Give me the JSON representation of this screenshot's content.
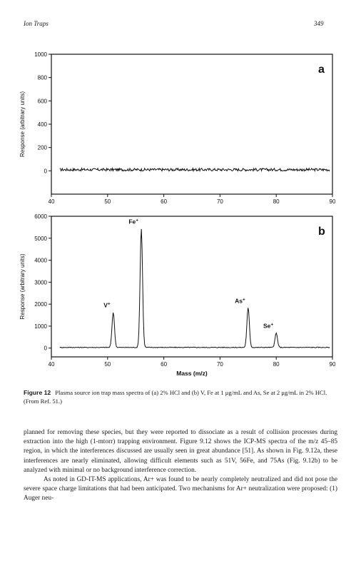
{
  "header": {
    "running_title": "Ion Traps",
    "page_number": "349"
  },
  "chart_data": [
    {
      "type": "line",
      "panel_label": "a",
      "ylabel": "Response (arbitrary units)",
      "xlabel": "",
      "xlim": [
        40,
        90
      ],
      "ylim": [
        -200,
        1000
      ],
      "x_ticks": [
        "40",
        "50",
        "60",
        "70",
        "80",
        "90"
      ],
      "y_ticks": [
        "0",
        "200",
        "400",
        "600",
        "800",
        "1000"
      ],
      "peaks": [],
      "baseline": 10,
      "noise": 12,
      "x_start": 41.5,
      "x_end": 89.5
    },
    {
      "type": "line",
      "panel_label": "b",
      "ylabel": "Response (arbitrary units)",
      "xlabel": "Mass (m/z)",
      "xlim": [
        40,
        90
      ],
      "ylim": [
        -400,
        6000
      ],
      "x_ticks": [
        "40",
        "50",
        "60",
        "70",
        "80",
        "90"
      ],
      "y_ticks": [
        "0",
        "1000",
        "2000",
        "3000",
        "4000",
        "5000",
        "6000"
      ],
      "peaks": [
        {
          "label": "V+",
          "x": 51,
          "y": 1600
        },
        {
          "label": "Fe+",
          "x": 56,
          "y": 5400
        },
        {
          "label": "As+",
          "x": 75,
          "y": 1800
        },
        {
          "label": "Se+",
          "x": 80,
          "y": 650
        }
      ],
      "baseline": 30,
      "noise": 18,
      "x_start": 41.5,
      "x_end": 89.5
    }
  ],
  "caption": {
    "label": "Figure 12",
    "text": "Plasma source ion trap mass spectra of (a) 2% HCl and (b) V, Fe at 1 μg/mL and As, Se at 2 μg/mL in 2% HCl. (From Ref. 51.)"
  },
  "body": {
    "paragraph1": "planned for removing these species, but they were reported to dissociate as a result of collision processes during extraction into the high (1-mtorr) trapping environment. Figure 9.12 shows the ICP-MS spectra of the m/z 45–85 region, in which the interferences discussed are usually seen in great abundance [51]. As shown in Fig. 9.12a, these interferences are nearly eliminated, allowing difficult elements such as 51V, 56Fe, and 75As (Fig. 9.12b) to be analyzed with minimal or no background interference correction.",
    "paragraph2": "As noted in GD-IT-MS applications, Ar+ was found to be nearly completely neutralized and did not pose the severe space charge limitations that had been anticipated. Two mechanisms for Ar+ neutralization were proposed: (1) Auger neu-"
  }
}
